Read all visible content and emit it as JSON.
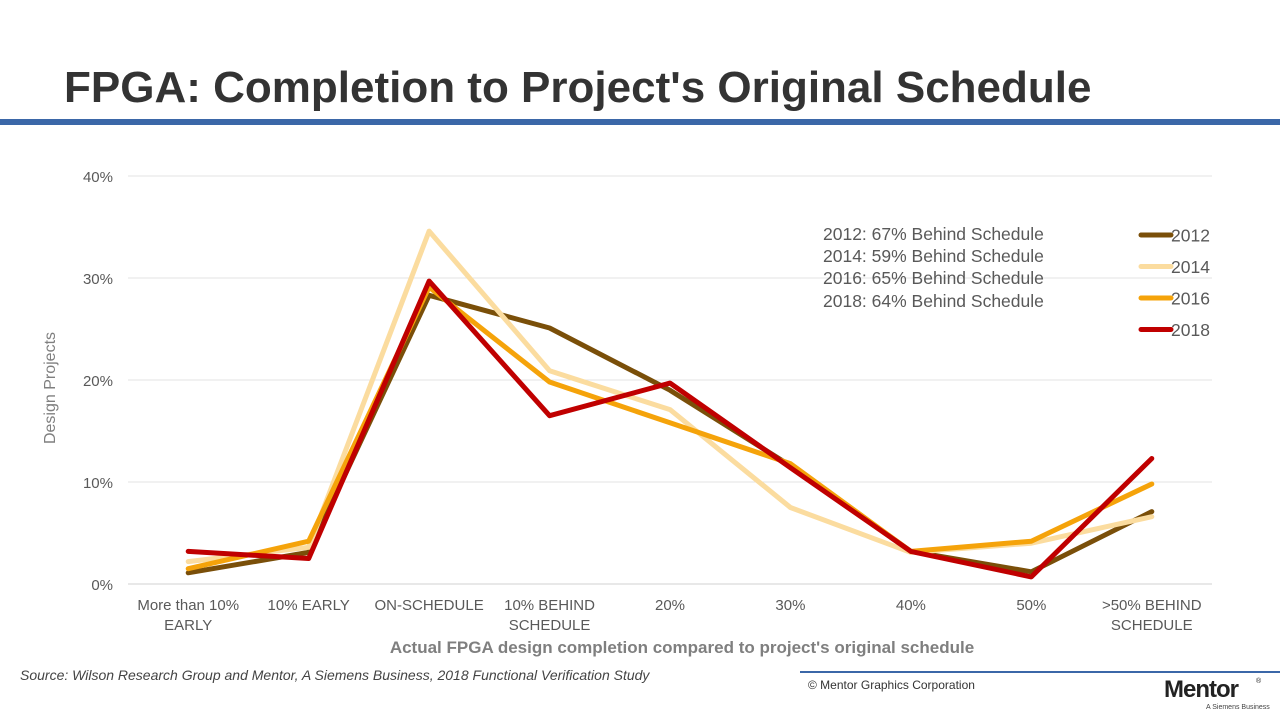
{
  "title": "FPGA: Completion to Project's Original Schedule",
  "colors": {
    "title_rule": "#3b67a8",
    "s2012": "#7a4f09",
    "s2014": "#fbdc9f",
    "s2016": "#f5a30a",
    "s2018": "#c00000"
  },
  "annotations": [
    "2012: 67% Behind Schedule",
    "2014: 59% Behind Schedule",
    "2016: 65% Behind Schedule",
    "2018: 64% Behind Schedule"
  ],
  "chart_data": {
    "type": "line",
    "xlabel": "Actual FPGA design completion compared to project's original schedule",
    "ylabel": "Design Projects",
    "ylim": [
      0,
      40
    ],
    "yticks": [
      "0%",
      "10%",
      "20%",
      "30%",
      "40%"
    ],
    "grid": true,
    "legend_position": "right",
    "categories": [
      [
        "More than 10%",
        "EARLY"
      ],
      [
        "10% EARLY"
      ],
      [
        "ON-SCHEDULE"
      ],
      [
        "10% BEHIND",
        "SCHEDULE"
      ],
      [
        "20%"
      ],
      [
        "30%"
      ],
      [
        "40%"
      ],
      [
        "50%"
      ],
      [
        ">50% BEHIND",
        "SCHEDULE"
      ]
    ],
    "series": [
      {
        "name": "2012",
        "color": "#7a4f09",
        "values": [
          1.1,
          3.1,
          28.3,
          25.1,
          19.0,
          11.6,
          3.2,
          1.2,
          7.1
        ]
      },
      {
        "name": "2014",
        "color": "#fbdc9f",
        "values": [
          2.2,
          3.6,
          34.6,
          20.9,
          17.1,
          7.5,
          3.1,
          4.0,
          6.6
        ]
      },
      {
        "name": "2016",
        "color": "#f5a30a",
        "values": [
          1.5,
          4.2,
          29.1,
          19.8,
          15.8,
          11.8,
          3.2,
          4.2,
          9.8
        ]
      },
      {
        "name": "2018",
        "color": "#c00000",
        "values": [
          3.2,
          2.5,
          29.7,
          16.5,
          19.7,
          11.4,
          3.2,
          0.7,
          12.3
        ]
      }
    ]
  },
  "footer": {
    "source": "Source:  Wilson Research Group and Mentor, A Siemens Business, 2018 Functional Verification Study",
    "copyright": "© Mentor Graphics Corporation",
    "logo_text": "Mentor",
    "logo_registered": "®",
    "logo_tagline": "A Siemens Business"
  }
}
